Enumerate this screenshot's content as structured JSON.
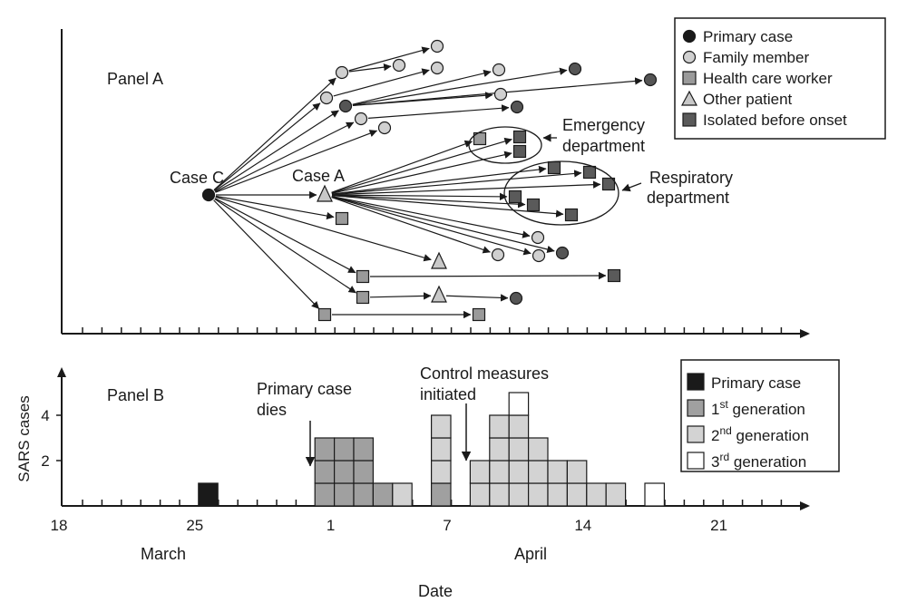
{
  "panel_a": {
    "label": "Panel A",
    "case_c_label": "Case C",
    "case_a_label": "Case A",
    "emergency_label": [
      "Emergency",
      "department"
    ],
    "respiratory_label": [
      "Respiratory",
      "department"
    ],
    "legend": [
      {
        "label": "Primary case",
        "symbol": "circle",
        "color": "#1a1a1a"
      },
      {
        "label": "Family member",
        "symbol": "circle",
        "color": "#d0d0d0"
      },
      {
        "label": "Health care worker",
        "symbol": "square",
        "color": "#9a9a9a"
      },
      {
        "label": "Other patient",
        "symbol": "triangle",
        "color": "#c8c8c8"
      },
      {
        "label": "Isolated before onset",
        "symbol": "square",
        "color": "#5a5a5a"
      }
    ],
    "colors": {
      "primary": "#1a1a1a",
      "family": "#d0d0d0",
      "family_dark": "#555555",
      "hcw": "#9a9a9a",
      "patient": "#c8c8c8",
      "isolated": "#5a5a5a"
    }
  },
  "panel_b": {
    "label": "Panel B",
    "ylabel": "SARS cases",
    "yticks": [
      "2",
      "4"
    ],
    "annotation_death": [
      "Primary case",
      "dies"
    ],
    "annotation_control": [
      "Control measures",
      "initiated"
    ],
    "legend": [
      {
        "label": "Primary case",
        "color": "#1a1a1a",
        "sup": ""
      },
      {
        "label": "1",
        "sup": "st",
        "rest": " generation",
        "color": "#a0a0a0"
      },
      {
        "label": "2",
        "sup": "nd",
        "rest": " generation",
        "color": "#d3d3d3"
      },
      {
        "label": "3",
        "sup": "rd",
        "rest": " generation",
        "color": "#ffffff"
      }
    ]
  },
  "axis": {
    "xtick_labels": [
      "18",
      "25",
      "1",
      "7",
      "14",
      "21"
    ],
    "months": [
      "March",
      "April"
    ],
    "xlabel": "Date"
  },
  "chart_data": {
    "type": "bar",
    "x_unit": "date (March 17 - April 23)",
    "series": [
      {
        "name": "Primary case",
        "x": [
          "Mar 25"
        ],
        "values": [
          1
        ]
      },
      {
        "name": "1st generation",
        "x": [
          "Mar 31",
          "Apr 1",
          "Apr 2",
          "Apr 3",
          "Apr 6"
        ],
        "values": [
          3,
          3,
          3,
          1,
          1
        ]
      },
      {
        "name": "2nd generation",
        "x": [
          "Apr 4",
          "Apr 6",
          "Apr 8",
          "Apr 9",
          "Apr 10",
          "Apr 11",
          "Apr 12",
          "Apr 13",
          "Apr 14",
          "Apr 15"
        ],
        "values": [
          1,
          3,
          2,
          4,
          4,
          3,
          2,
          2,
          1,
          1
        ]
      },
      {
        "name": "3rd generation",
        "x": [
          "Apr 10",
          "Apr 17"
        ],
        "values": [
          1,
          1
        ]
      }
    ],
    "stacks": [
      {
        "day": 8,
        "parts": [
          [
            "primary",
            1
          ]
        ]
      },
      {
        "day": 14,
        "parts": [
          [
            "g1",
            3
          ]
        ]
      },
      {
        "day": 15,
        "parts": [
          [
            "g1",
            3
          ]
        ]
      },
      {
        "day": 16,
        "parts": [
          [
            "g1",
            3
          ]
        ]
      },
      {
        "day": 17,
        "parts": [
          [
            "g1",
            1
          ]
        ]
      },
      {
        "day": 18,
        "parts": [
          [
            "g2",
            1
          ]
        ]
      },
      {
        "day": 20,
        "parts": [
          [
            "g1",
            1
          ],
          [
            "g2",
            3
          ]
        ]
      },
      {
        "day": 22,
        "parts": [
          [
            "g2",
            2
          ]
        ]
      },
      {
        "day": 23,
        "parts": [
          [
            "g2",
            4
          ]
        ]
      },
      {
        "day": 24,
        "parts": [
          [
            "g2",
            4
          ],
          [
            "g3",
            1
          ]
        ]
      },
      {
        "day": 25,
        "parts": [
          [
            "g2",
            3
          ]
        ]
      },
      {
        "day": 26,
        "parts": [
          [
            "g2",
            2
          ]
        ]
      },
      {
        "day": 27,
        "parts": [
          [
            "g2",
            2
          ]
        ]
      },
      {
        "day": 28,
        "parts": [
          [
            "g2",
            1
          ]
        ]
      },
      {
        "day": 29,
        "parts": [
          [
            "g2",
            1
          ]
        ]
      },
      {
        "day": 31,
        "parts": [
          [
            "g3",
            1
          ]
        ]
      }
    ],
    "ylim": [
      0,
      5
    ],
    "xlabel": "Date",
    "ylabel": "SARS cases",
    "panel_a_nodes": [
      {
        "id": "C",
        "day": 8,
        "kind": "primary",
        "label": "Case C"
      },
      {
        "id": "A",
        "day": 14.5,
        "kind": "patient",
        "label": "Case A"
      },
      {
        "id": "f1",
        "day": 14.5,
        "kind": "family",
        "group": "top"
      },
      {
        "id": "f2",
        "day": 17.5,
        "kind": "family",
        "group": "top"
      },
      {
        "id": "f3",
        "day": 19.5,
        "kind": "family",
        "group": "top"
      },
      {
        "id": "f4",
        "day": 19.5,
        "kind": "family",
        "group": "top"
      },
      {
        "id": "f5",
        "day": 23.1,
        "kind": "family",
        "group": "top"
      },
      {
        "id": "f6",
        "day": 23.1,
        "kind": "family",
        "group": "top"
      },
      {
        "id": "f7",
        "day": 13.8,
        "kind": "family",
        "group": "top"
      },
      {
        "id": "f8",
        "day": 15.8,
        "kind": "family",
        "group": "top"
      },
      {
        "id": "f9",
        "day": 17.0,
        "kind": "family",
        "group": "top"
      },
      {
        "id": "d1",
        "day": 14.7,
        "kind": "family_dark",
        "group": "top"
      },
      {
        "id": "d2",
        "day": 27.0,
        "kind": "family_dark",
        "group": "top"
      },
      {
        "id": "d3",
        "day": 30.8,
        "kind": "family_dark",
        "group": "top"
      },
      {
        "id": "d4",
        "day": 24.8,
        "kind": "family_dark",
        "group": "top"
      }
    ]
  }
}
